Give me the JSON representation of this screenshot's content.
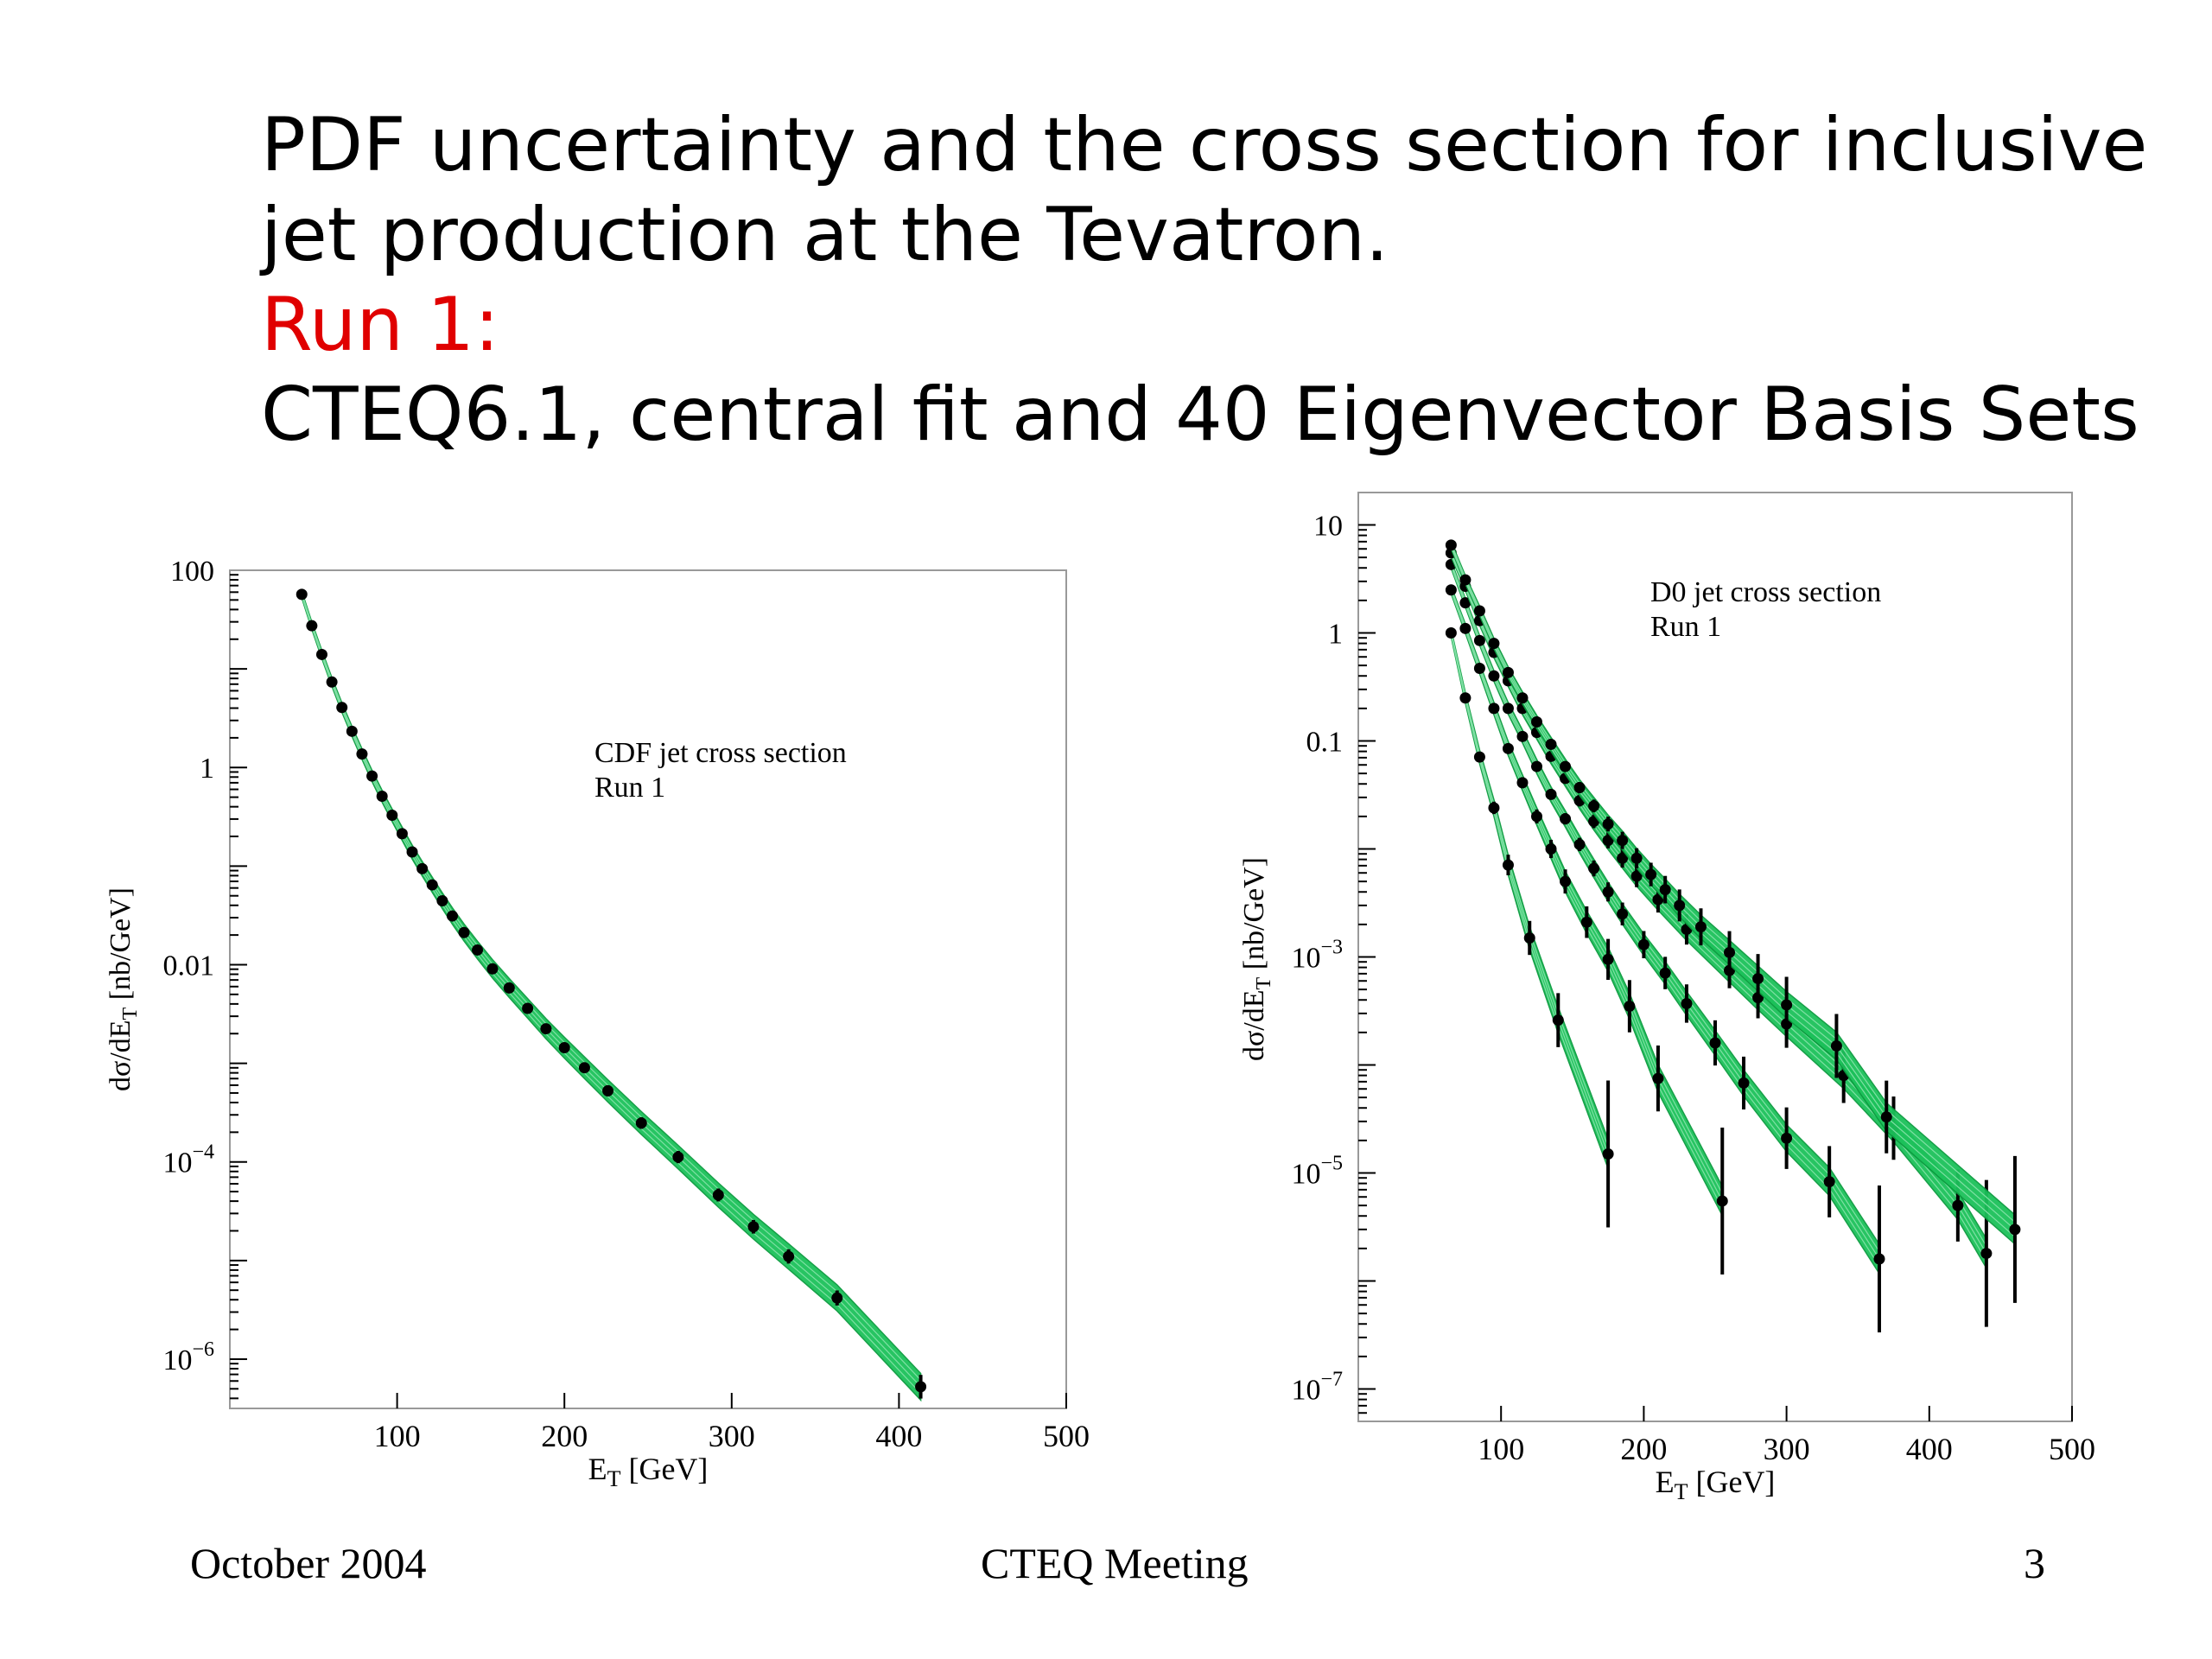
{
  "slide": {
    "title_line1": "PDF uncertainty and the cross section for inclusive",
    "title_line2": "jet production at the Tevatron.",
    "title_run": "Run 1:",
    "title_line4": "CTEQ6.1, central  fit and 40 Eigenvector Basis Sets",
    "footer_left": "October 2004",
    "footer_center": "CTEQ Meeting",
    "footer_right": "3",
    "colors": {
      "band": "#1cc15a",
      "band_line": "#0a9a3e",
      "run_label": "#e00000"
    }
  },
  "chart_data": [
    {
      "type": "scatter",
      "annotation_line1": "CDF jet cross section",
      "annotation_line2": "Run 1",
      "xlabel": "E",
      "xlabel_sub": "T",
      "xlabel_unit": " [GeV]",
      "ylabel": "dσ/dE",
      "ylabel_sub": "T",
      "ylabel_unit": " [nb/GeV]",
      "xlim": [
        0,
        500
      ],
      "ylog": true,
      "ylim_exp": [
        -6.5,
        2
      ],
      "xticks": [
        100,
        200,
        300,
        400,
        500
      ],
      "yticks": [
        {
          "exp": 2,
          "label": "100"
        },
        {
          "exp": 0,
          "label": "1"
        },
        {
          "exp": -2,
          "label": "0.01"
        },
        {
          "exp": -4,
          "label": "10",
          "sup": "−4"
        },
        {
          "exp": -6,
          "label": "10",
          "sup": "−6"
        }
      ],
      "series": [
        {
          "x": [
            43,
            49,
            55,
            61,
            67,
            73,
            79,
            85,
            91,
            97,
            103,
            109,
            115,
            121,
            127,
            133,
            140,
            148,
            157,
            167,
            178,
            189,
            200,
            212,
            226,
            246,
            268,
            292,
            313,
            334,
            363,
            413
          ],
          "y": [
            57,
            27.4,
            14.0,
            7.36,
            4.06,
            2.33,
            1.37,
            0.819,
            0.511,
            0.328,
            0.213,
            0.139,
            0.0942,
            0.0645,
            0.0445,
            0.0312,
            0.0212,
            0.0141,
            0.00908,
            0.00581,
            0.00361,
            0.00224,
            0.00144,
            0.000902,
            0.000526,
            0.000248,
            0.000112,
            4.62e-05,
            2.2e-05,
            1.1e-05,
            4.17e-06,
            5.25e-07
          ]
        }
      ]
    },
    {
      "type": "scatter",
      "annotation_line1": "D0 jet cross section",
      "annotation_line2": "Run 1",
      "xlabel": "E",
      "xlabel_sub": "T",
      "xlabel_unit": " [GeV]",
      "ylabel": "dσ/dE",
      "ylabel_sub": "T",
      "ylabel_unit": " [nb/GeV]",
      "xlim": [
        0,
        500
      ],
      "ylog": true,
      "ylim_exp": [
        -7.3,
        1.3
      ],
      "xticks": [
        100,
        200,
        300,
        400,
        500
      ],
      "yticks": [
        {
          "exp": 1,
          "label": "10"
        },
        {
          "exp": 0,
          "label": "1"
        },
        {
          "exp": -1,
          "label": "0.1"
        },
        {
          "exp": -3,
          "label": "10",
          "sup": "−3"
        },
        {
          "exp": -5,
          "label": "10",
          "sup": "−5"
        },
        {
          "exp": -7,
          "label": "10",
          "sup": "−7"
        }
      ],
      "series": [
        {
          "x": [
            65,
            75,
            85,
            95,
            105,
            120,
            140,
            175
          ],
          "y": [
            1.0,
            0.25,
            0.071,
            0.024,
            0.0071,
            0.0015,
            0.00026,
            1.5e-05
          ]
        },
        {
          "x": [
            65,
            75,
            85,
            95,
            105,
            115,
            125,
            135,
            145,
            160,
            175,
            190,
            210,
            255
          ],
          "y": [
            2.5,
            1.1,
            0.47,
            0.2,
            0.085,
            0.041,
            0.02,
            0.01,
            0.005,
            0.0021,
            0.00095,
            0.00035,
            7.5e-05,
            5.5e-06
          ]
        },
        {
          "x": [
            65,
            75,
            85,
            95,
            105,
            115,
            125,
            135,
            145,
            155,
            165,
            175,
            185,
            200,
            215,
            230,
            250,
            270,
            300,
            330,
            365
          ],
          "y": [
            4.3,
            1.9,
            0.85,
            0.4,
            0.2,
            0.11,
            0.058,
            0.032,
            0.019,
            0.011,
            0.0066,
            0.004,
            0.0025,
            0.0013,
            0.00071,
            0.00037,
            0.00016,
            6.8e-05,
            2.1e-05,
            8.3e-06,
            1.6e-06
          ]
        },
        {
          "x": [
            65,
            75,
            85,
            95,
            105,
            115,
            125,
            135,
            145,
            155,
            165,
            175,
            185,
            195,
            210,
            230,
            260,
            280,
            300,
            340,
            375,
            420,
            440
          ],
          "y": [
            5.5,
            2.7,
            1.3,
            0.66,
            0.36,
            0.2,
            0.12,
            0.072,
            0.045,
            0.028,
            0.018,
            0.012,
            0.0082,
            0.0056,
            0.0034,
            0.0018,
            0.00075,
            0.00042,
            0.00024,
            8e-05,
            2.6e-05,
            5e-06,
            1.8e-06
          ]
        },
        {
          "x": [
            65,
            75,
            85,
            95,
            105,
            115,
            125,
            135,
            145,
            155,
            165,
            175,
            185,
            195,
            205,
            215,
            225,
            240,
            260,
            280,
            300,
            335,
            370,
            460
          ],
          "y": [
            6.5,
            3.1,
            1.6,
            0.8,
            0.43,
            0.25,
            0.15,
            0.093,
            0.058,
            0.037,
            0.025,
            0.017,
            0.012,
            0.0082,
            0.0058,
            0.0042,
            0.003,
            0.0019,
            0.0011,
            0.00063,
            0.00036,
            0.00015,
            3.3e-05,
            3e-06
          ]
        }
      ]
    }
  ]
}
